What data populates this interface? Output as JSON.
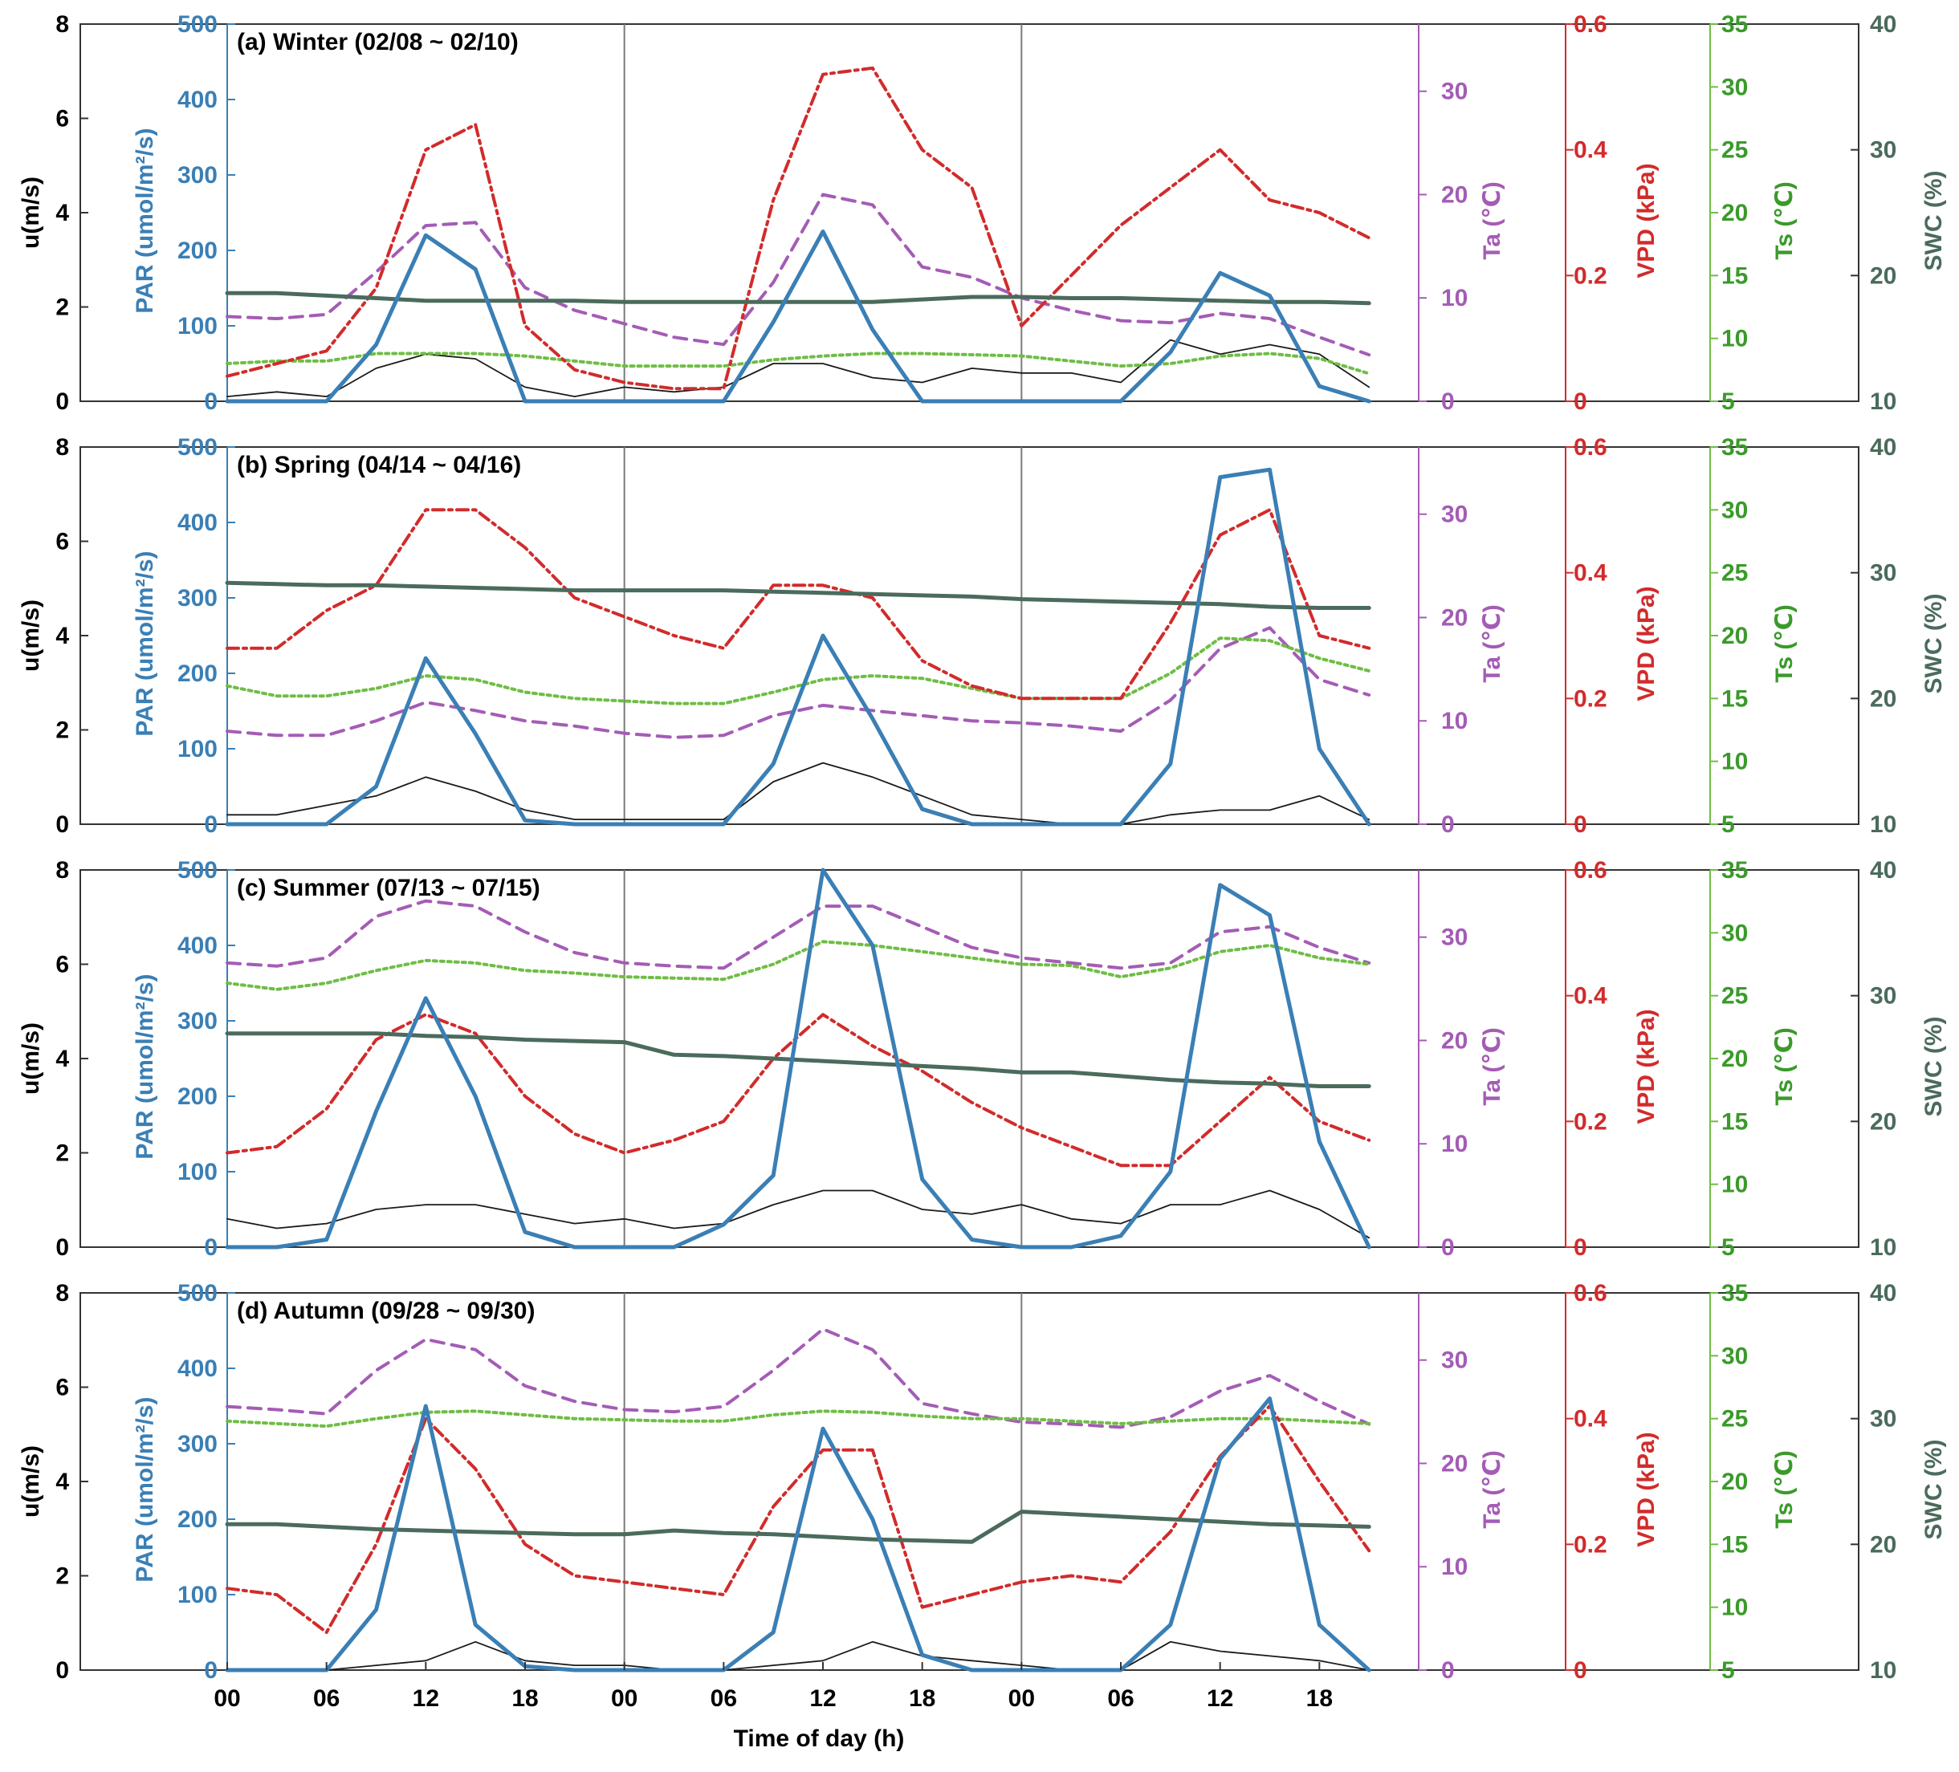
{
  "colors": {
    "u": "#1a1a1a",
    "par": "#3a7fb5",
    "ta": "#a45cb5",
    "vpd": "#d22b2b",
    "ts": "#6fbd45",
    "swc": "#4b6b5c",
    "frame": "#333333",
    "divider": "#7a7a7a"
  },
  "shared": {
    "xlabel": "Time of day (h)",
    "x_tick_labels": [
      "00",
      "06",
      "12",
      "18",
      "00",
      "06",
      "12",
      "18",
      "00",
      "06",
      "12",
      "18"
    ],
    "u_ylabel": "u(m/s)",
    "par_ylabel": "PAR (umol/m²/s)",
    "ta_ylabel": "Ta (℃)",
    "vpd_ylabel": "VPD (kPa)",
    "ts_ylabel": "Ts (℃)",
    "swc_ylabel": "SWC (%)",
    "u_ticks": [
      "0",
      "2",
      "4",
      "6",
      "8"
    ],
    "par_ticks": [
      "0",
      "100",
      "200",
      "300",
      "400",
      "500"
    ],
    "ta_ticks": [
      "0",
      "10",
      "20",
      "30"
    ],
    "vpd_ticks": [
      "0",
      "0.2",
      "0.4",
      "0.6"
    ],
    "ts_ticks": [
      "5",
      "10",
      "15",
      "20",
      "25",
      "30",
      "35"
    ],
    "swc_ticks": [
      "10",
      "20",
      "30",
      "40"
    ]
  },
  "chart_data": [
    {
      "type": "line",
      "title": "(a) Winter (02/08 ~ 02/10)",
      "xlabel": "Time of day (h)",
      "x_hours": [
        0,
        3,
        6,
        9,
        12,
        15,
        18,
        21,
        24,
        27,
        30,
        33,
        36,
        39,
        42,
        45,
        48,
        51,
        54,
        57,
        60,
        63,
        66,
        69
      ],
      "series": [
        {
          "name": "u",
          "units": "m/s",
          "ylim": [
            0,
            8
          ],
          "values": [
            0.1,
            0.2,
            0.1,
            0.7,
            1.0,
            0.9,
            0.3,
            0.1,
            0.3,
            0.2,
            0.3,
            0.8,
            0.8,
            0.5,
            0.4,
            0.7,
            0.6,
            0.6,
            0.4,
            1.3,
            1.0,
            1.2,
            1.0,
            0.3
          ]
        },
        {
          "name": "PAR",
          "units": "umol/m2/s",
          "ylim": [
            0,
            500
          ],
          "values": [
            0,
            0,
            0,
            75,
            220,
            175,
            0,
            0,
            0,
            0,
            0,
            105,
            225,
            95,
            0,
            0,
            0,
            0,
            0,
            65,
            170,
            140,
            20,
            0
          ]
        },
        {
          "name": "Ta",
          "units": "℃",
          "ylim": [
            0,
            36.5
          ],
          "values": [
            8.2,
            8.0,
            8.4,
            12.5,
            17.0,
            17.3,
            11.0,
            8.8,
            7.5,
            6.2,
            5.5,
            11.5,
            20.0,
            19.0,
            13.0,
            12.0,
            10.0,
            8.8,
            7.8,
            7.6,
            8.5,
            8.0,
            6.2,
            4.5
          ]
        },
        {
          "name": "VPD",
          "units": "kPa",
          "ylim": [
            0,
            0.6
          ],
          "values": [
            0.04,
            0.06,
            0.08,
            0.18,
            0.4,
            0.44,
            0.12,
            0.05,
            0.03,
            0.02,
            0.02,
            0.32,
            0.52,
            0.53,
            0.4,
            0.34,
            0.12,
            0.2,
            0.28,
            0.34,
            0.4,
            0.32,
            0.3,
            0.26
          ]
        },
        {
          "name": "Ts",
          "units": "℃",
          "ylim": [
            5,
            35
          ],
          "values": [
            8.0,
            8.2,
            8.2,
            8.8,
            8.8,
            8.8,
            8.6,
            8.2,
            7.8,
            7.8,
            7.8,
            8.3,
            8.6,
            8.8,
            8.8,
            8.7,
            8.6,
            8.2,
            7.8,
            8.0,
            8.6,
            8.8,
            8.4,
            7.2
          ]
        },
        {
          "name": "SWC",
          "units": "%",
          "ylim": [
            10,
            40
          ],
          "values": [
            18.6,
            18.6,
            18.4,
            18.2,
            18.0,
            18.0,
            18.0,
            18.0,
            17.9,
            17.9,
            17.9,
            17.9,
            17.9,
            17.9,
            18.1,
            18.3,
            18.3,
            18.2,
            18.2,
            18.1,
            18.0,
            17.9,
            17.9,
            17.8
          ]
        }
      ]
    },
    {
      "type": "line",
      "title": "(b) Spring (04/14 ~ 04/16)",
      "xlabel": "Time of day (h)",
      "x_hours": [
        0,
        3,
        6,
        9,
        12,
        15,
        18,
        21,
        24,
        27,
        30,
        33,
        36,
        39,
        42,
        45,
        48,
        51,
        54,
        57,
        60,
        63,
        66,
        69
      ],
      "series": [
        {
          "name": "u",
          "units": "m/s",
          "ylim": [
            0,
            8
          ],
          "values": [
            0.2,
            0.2,
            0.4,
            0.6,
            1.0,
            0.7,
            0.3,
            0.1,
            0.1,
            0.1,
            0.1,
            0.9,
            1.3,
            1.0,
            0.6,
            0.2,
            0.1,
            0.0,
            0.0,
            0.2,
            0.3,
            0.3,
            0.6,
            0.1
          ]
        },
        {
          "name": "PAR",
          "units": "umol/m2/s",
          "ylim": [
            0,
            500
          ],
          "values": [
            0,
            0,
            0,
            50,
            220,
            120,
            5,
            0,
            0,
            0,
            0,
            80,
            250,
            140,
            20,
            0,
            0,
            0,
            0,
            80,
            460,
            470,
            100,
            0
          ]
        },
        {
          "name": "Ta",
          "units": "℃",
          "ylim": [
            0,
            36.5
          ],
          "values": [
            9.0,
            8.6,
            8.6,
            10.0,
            11.8,
            11.0,
            10.0,
            9.5,
            8.8,
            8.4,
            8.6,
            10.5,
            11.5,
            11.0,
            10.5,
            10.0,
            9.8,
            9.5,
            9.0,
            12.0,
            17.0,
            19.0,
            14.0,
            12.5
          ]
        },
        {
          "name": "VPD",
          "units": "kPa",
          "ylim": [
            0,
            0.6
          ],
          "values": [
            0.28,
            0.28,
            0.34,
            0.38,
            0.5,
            0.5,
            0.44,
            0.36,
            0.33,
            0.3,
            0.28,
            0.38,
            0.38,
            0.36,
            0.26,
            0.22,
            0.2,
            0.2,
            0.2,
            0.32,
            0.46,
            0.5,
            0.3,
            0.28
          ]
        },
        {
          "name": "Ts",
          "units": "℃",
          "ylim": [
            5,
            35
          ],
          "values": [
            16.0,
            15.2,
            15.2,
            15.8,
            16.8,
            16.5,
            15.5,
            15.0,
            14.8,
            14.6,
            14.6,
            15.5,
            16.5,
            16.8,
            16.6,
            15.8,
            15.0,
            15.0,
            15.0,
            17.0,
            19.8,
            19.6,
            18.2,
            17.2
          ]
        },
        {
          "name": "SWC",
          "units": "%",
          "ylim": [
            10,
            40
          ],
          "values": [
            29.2,
            29.1,
            29.0,
            29.0,
            28.9,
            28.8,
            28.7,
            28.6,
            28.6,
            28.6,
            28.6,
            28.5,
            28.4,
            28.3,
            28.2,
            28.1,
            27.9,
            27.8,
            27.7,
            27.6,
            27.5,
            27.3,
            27.2,
            27.2
          ]
        }
      ]
    },
    {
      "type": "line",
      "title": "(c) Summer (07/13 ~ 07/15)",
      "xlabel": "Time of day (h)",
      "x_hours": [
        0,
        3,
        6,
        9,
        12,
        15,
        18,
        21,
        24,
        27,
        30,
        33,
        36,
        39,
        42,
        45,
        48,
        51,
        54,
        57,
        60,
        63,
        66,
        69
      ],
      "series": [
        {
          "name": "u",
          "units": "m/s",
          "ylim": [
            0,
            8
          ],
          "values": [
            0.6,
            0.4,
            0.5,
            0.8,
            0.9,
            0.9,
            0.7,
            0.5,
            0.6,
            0.4,
            0.5,
            0.9,
            1.2,
            1.2,
            0.8,
            0.7,
            0.9,
            0.6,
            0.5,
            0.9,
            0.9,
            1.2,
            0.8,
            0.2
          ]
        },
        {
          "name": "PAR",
          "units": "umol/m2/s",
          "ylim": [
            0,
            500
          ],
          "values": [
            0,
            0,
            10,
            180,
            330,
            200,
            20,
            0,
            0,
            0,
            30,
            95,
            500,
            400,
            90,
            10,
            0,
            0,
            15,
            100,
            480,
            440,
            140,
            0
          ]
        },
        {
          "name": "Ta",
          "units": "℃",
          "ylim": [
            0,
            36.5
          ],
          "values": [
            27.5,
            27.2,
            28.0,
            32.0,
            33.5,
            33.0,
            30.5,
            28.5,
            27.5,
            27.2,
            27.0,
            30.0,
            33.0,
            33.0,
            31.0,
            29.0,
            28.0,
            27.5,
            27.0,
            27.5,
            30.5,
            31.0,
            29.0,
            27.5
          ]
        },
        {
          "name": "VPD",
          "units": "kPa",
          "ylim": [
            0,
            0.6
          ],
          "values": [
            0.15,
            0.16,
            0.22,
            0.33,
            0.37,
            0.34,
            0.24,
            0.18,
            0.15,
            0.17,
            0.2,
            0.3,
            0.37,
            0.32,
            0.28,
            0.23,
            0.19,
            0.16,
            0.13,
            0.13,
            0.2,
            0.27,
            0.2,
            0.17
          ]
        },
        {
          "name": "Ts",
          "units": "℃",
          "ylim": [
            5,
            35
          ],
          "values": [
            26.0,
            25.5,
            26.0,
            27.0,
            27.8,
            27.6,
            27.0,
            26.8,
            26.5,
            26.4,
            26.3,
            27.5,
            29.3,
            29.0,
            28.5,
            28.0,
            27.5,
            27.4,
            26.5,
            27.2,
            28.5,
            29.0,
            28.0,
            27.5
          ]
        },
        {
          "name": "SWC",
          "units": "%",
          "ylim": [
            10,
            40
          ],
          "values": [
            27.0,
            27.0,
            27.0,
            27.0,
            26.8,
            26.7,
            26.5,
            26.4,
            26.3,
            25.3,
            25.2,
            25.0,
            24.8,
            24.6,
            24.4,
            24.2,
            23.9,
            23.9,
            23.6,
            23.3,
            23.1,
            23.0,
            22.8,
            22.8
          ]
        }
      ]
    },
    {
      "type": "line",
      "title": "(d) Autumn (09/28 ~ 09/30)",
      "xlabel": "Time of day (h)",
      "x_hours": [
        0,
        3,
        6,
        9,
        12,
        15,
        18,
        21,
        24,
        27,
        30,
        33,
        36,
        39,
        42,
        45,
        48,
        51,
        54,
        57,
        60,
        63,
        66,
        69
      ],
      "series": [
        {
          "name": "u",
          "units": "m/s",
          "ylim": [
            0,
            8
          ],
          "values": [
            0.0,
            0.0,
            0.0,
            0.1,
            0.2,
            0.6,
            0.2,
            0.1,
            0.1,
            0.0,
            0.0,
            0.1,
            0.2,
            0.6,
            0.3,
            0.2,
            0.1,
            0.0,
            0.0,
            0.6,
            0.4,
            0.3,
            0.2,
            0.0
          ]
        },
        {
          "name": "PAR",
          "units": "umol/m2/s",
          "ylim": [
            0,
            500
          ],
          "values": [
            0,
            0,
            0,
            80,
            350,
            60,
            5,
            0,
            0,
            0,
            0,
            50,
            320,
            200,
            20,
            0,
            0,
            0,
            0,
            60,
            280,
            360,
            60,
            0
          ]
        },
        {
          "name": "Ta",
          "units": "℃",
          "ylim": [
            0,
            36.5
          ],
          "values": [
            25.5,
            25.2,
            24.8,
            29.0,
            32.0,
            31.0,
            27.5,
            26.0,
            25.2,
            25.0,
            25.5,
            29.0,
            33.0,
            31.0,
            25.8,
            24.8,
            24.0,
            23.8,
            23.5,
            24.5,
            27.0,
            28.5,
            26.0,
            23.8
          ]
        },
        {
          "name": "VPD",
          "units": "kPa",
          "ylim": [
            0,
            0.6
          ],
          "values": [
            0.13,
            0.12,
            0.06,
            0.2,
            0.4,
            0.32,
            0.2,
            0.15,
            0.14,
            0.13,
            0.12,
            0.26,
            0.35,
            0.35,
            0.1,
            0.12,
            0.14,
            0.15,
            0.14,
            0.22,
            0.34,
            0.42,
            0.3,
            0.19
          ]
        },
        {
          "name": "Ts",
          "units": "℃",
          "ylim": [
            5,
            35
          ],
          "values": [
            24.8,
            24.6,
            24.4,
            25.0,
            25.5,
            25.6,
            25.3,
            25.0,
            24.9,
            24.8,
            24.8,
            25.3,
            25.6,
            25.5,
            25.2,
            25.0,
            25.0,
            24.8,
            24.6,
            24.8,
            25.0,
            25.0,
            24.8,
            24.6
          ]
        },
        {
          "name": "SWC",
          "units": "%",
          "ylim": [
            10,
            40
          ],
          "values": [
            21.6,
            21.6,
            21.4,
            21.2,
            21.1,
            21.0,
            20.9,
            20.8,
            20.8,
            21.1,
            20.9,
            20.8,
            20.6,
            20.4,
            20.3,
            20.2,
            22.6,
            22.4,
            22.2,
            22.0,
            21.8,
            21.6,
            21.5,
            21.4
          ]
        }
      ]
    }
  ]
}
